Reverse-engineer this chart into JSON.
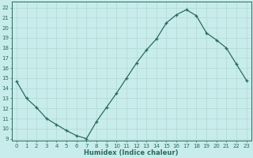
{
  "x": [
    0,
    1,
    2,
    3,
    4,
    5,
    6,
    7,
    8,
    9,
    10,
    11,
    12,
    13,
    14,
    15,
    16,
    17,
    18,
    19,
    20,
    21,
    22,
    23
  ],
  "y": [
    14.7,
    13.0,
    12.1,
    11.0,
    10.4,
    9.8,
    9.3,
    9.0,
    10.7,
    12.1,
    13.5,
    15.0,
    16.5,
    17.8,
    18.9,
    20.5,
    21.3,
    21.8,
    21.2,
    19.5,
    18.8,
    18.0,
    16.4,
    14.8
  ],
  "line_color": "#2a6b5f",
  "marker": "+",
  "marker_size": 3.5,
  "bg_color": "#c8eceb",
  "grid_color": "#b0d8d5",
  "xlabel": "Humidex (Indice chaleur)",
  "ylabel_ticks": [
    9,
    10,
    11,
    12,
    13,
    14,
    15,
    16,
    17,
    18,
    19,
    20,
    21,
    22
  ],
  "ylim": [
    8.8,
    22.6
  ],
  "xlim": [
    -0.5,
    23.5
  ],
  "linewidth": 0.9,
  "tick_fontsize": 5.0,
  "xlabel_fontsize": 6.0
}
